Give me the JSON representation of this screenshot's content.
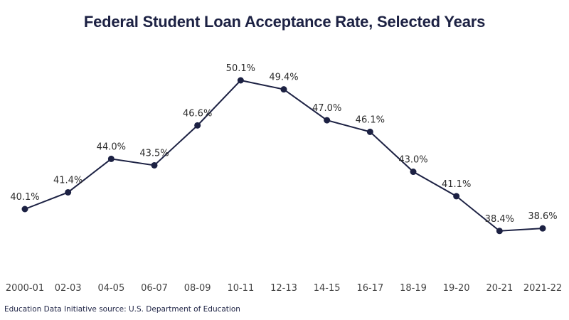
{
  "chart_data": {
    "type": "line",
    "title": "Federal Student Loan Acceptance Rate, Selected Years",
    "xlabel": "",
    "ylabel": "",
    "categories": [
      "2000-01",
      "02-03",
      "04-05",
      "06-07",
      "08-09",
      "10-11",
      "12-13",
      "14-15",
      "16-17",
      "18-19",
      "19-20",
      "20-21",
      "2021-22"
    ],
    "series": [
      {
        "name": "Acceptance Rate",
        "values": [
          40.1,
          41.4,
          44.0,
          43.5,
          46.6,
          50.1,
          49.4,
          47.0,
          46.1,
          43.0,
          41.1,
          38.4,
          38.6
        ]
      }
    ],
    "data_labels": [
      "40.1%",
      "41.4%",
      "44.0%",
      "43.5%",
      "46.6%",
      "50.1%",
      "49.4%",
      "47.0%",
      "46.1%",
      "43.0%",
      "41.1%",
      "38.4%",
      "38.6%"
    ],
    "grid": false,
    "legend": "none",
    "line_color": "#1c2143"
  },
  "header": {
    "title": "Federal Student Loan Acceptance Rate, Selected Years"
  },
  "footer": {
    "source": "Education Data Initiative source: U.S. Department of Education"
  }
}
